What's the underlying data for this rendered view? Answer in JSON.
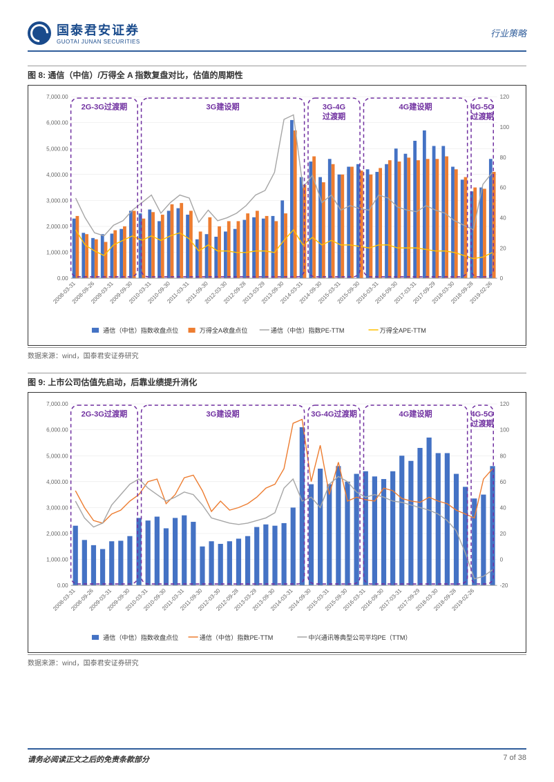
{
  "header": {
    "logo_cn": "国泰君安证券",
    "logo_en": "GUOTAI JUNAN SECURITIES",
    "doc_type": "行业策略"
  },
  "footer": {
    "disclaimer": "请务必阅读正文之后的免责条款部分",
    "page": "7 of 38"
  },
  "fig8": {
    "title": "图 8:  通信（中信）/万得全 A 指数复盘对比，估值的周期性",
    "source": "数据来源：wind，国泰君安证券研究",
    "x_labels": [
      "2008-03-31",
      "2008-09-26",
      "2009-03-31",
      "2009-09-30",
      "2010-03-31",
      "2010-09-30",
      "2011-03-31",
      "2011-09-30",
      "2012-03-30",
      "2012-09-28",
      "2013-03-29",
      "2013-09-30",
      "2014-03-31",
      "2014-09-30",
      "2015-03-31",
      "2015-09-30",
      "2016-03-31",
      "2016-09-30",
      "2017-03-31",
      "2017-09-29",
      "2018-03-30",
      "2018-09-28",
      "2019-02-26"
    ],
    "y_left": {
      "min": 0,
      "max": 7000,
      "step": 1000,
      "labels": [
        "0.00",
        "1,000.00",
        "2,000.00",
        "3,000.00",
        "4,000.00",
        "5,000.00",
        "6,000.00",
        "7,000.00"
      ]
    },
    "y_right": {
      "min": 0,
      "max": 120,
      "step": 20,
      "labels": [
        "0",
        "20",
        "40",
        "60",
        "80",
        "100",
        "120"
      ]
    },
    "periods": [
      {
        "label": "2G-3G过渡期",
        "start": 0,
        "end": 3.6
      },
      {
        "label": "3G建设期",
        "start": 3.8,
        "end": 12.6
      },
      {
        "label": "3G-4G\n过渡期",
        "start": 12.8,
        "end": 15.6
      },
      {
        "label": "4G建设期",
        "start": 15.8,
        "end": 21.4
      },
      {
        "label": "4G-5G\n过渡期",
        "start": 21.6,
        "end": 22.8
      }
    ],
    "colors": {
      "bar1": "#4472c4",
      "bar2": "#ed7d31",
      "line1": "#a6a6a6",
      "line2": "#ffc000"
    },
    "legend": [
      "通信（中信）指数收盘点位",
      "万得全A收盘点位",
      "通信（中信）指数PE-TTM",
      "万得全APE-TTM"
    ],
    "bar1": [
      2300,
      1750,
      1550,
      1700,
      1720,
      1900,
      2600,
      2500,
      2650,
      2200,
      2600,
      2700,
      2450,
      1500,
      1700,
      1600,
      1800,
      1900,
      2250,
      2350,
      2300,
      2400,
      3000,
      6100,
      3900,
      4500,
      3900,
      4600,
      4000,
      4300,
      4400,
      4200,
      4100,
      4400,
      5000,
      4800,
      5300,
      5700,
      5100,
      5100,
      4300,
      3800,
      3350,
      3500,
      4600
    ],
    "bar2": [
      2400,
      1700,
      1500,
      1400,
      1850,
      2000,
      2600,
      2300,
      2550,
      2450,
      2850,
      2900,
      2600,
      1800,
      2350,
      2000,
      2200,
      2200,
      2500,
      2600,
      2400,
      2200,
      2500,
      5700,
      3600,
      4700,
      3700,
      4400,
      4000,
      4300,
      4150,
      4000,
      4250,
      4550,
      4500,
      4650,
      4550,
      4600,
      4600,
      4700,
      4200,
      3900,
      3500,
      3450,
      4100
    ],
    "line1": [
      53,
      40,
      30,
      28,
      35,
      38,
      45,
      50,
      55,
      43,
      50,
      55,
      53,
      37,
      45,
      38,
      40,
      43,
      48,
      55,
      58,
      70,
      105,
      108,
      60,
      68,
      50,
      55,
      45,
      48,
      46,
      45,
      55,
      53,
      47,
      45,
      44,
      48,
      45,
      43,
      38,
      35,
      32,
      62,
      70
    ],
    "line2": [
      32,
      22,
      18,
      15,
      22,
      25,
      28,
      25,
      28,
      25,
      28,
      30,
      26,
      18,
      22,
      18,
      18,
      17,
      17,
      18,
      18,
      17,
      25,
      32,
      22,
      27,
      22,
      25,
      22,
      22,
      21,
      20,
      22,
      22,
      20,
      20,
      20,
      19,
      18,
      18,
      17,
      15,
      13,
      14,
      17
    ]
  },
  "fig9": {
    "title": "图 9:  上市公司估值先启动，后靠业绩提升消化",
    "source": "数据来源：wind，国泰君安证券研究",
    "x_labels": [
      "2008-03-31",
      "2008-09-26",
      "2009-03-31",
      "2009-09-30",
      "2010-03-31",
      "2010-09-30",
      "2011-03-31",
      "2011-09-30",
      "2012-03-30",
      "2012-09-28",
      "2013-03-29",
      "2013-09-30",
      "2014-03-31",
      "2014-09-30",
      "2015-03-31",
      "2015-09-30",
      "2016-03-31",
      "2016-09-30",
      "2017-03-31",
      "2017-09-29",
      "2018-03-30",
      "2018-09-28",
      "2019-02-26"
    ],
    "y_left": {
      "min": 0,
      "max": 7000,
      "step": 1000,
      "labels": [
        "0.00",
        "1,000.00",
        "2,000.00",
        "3,000.00",
        "4,000.00",
        "5,000.00",
        "6,000.00",
        "7,000.00"
      ]
    },
    "y_right": {
      "min": -20,
      "max": 120,
      "step": 20,
      "labels": [
        "-20",
        "0",
        "20",
        "40",
        "60",
        "80",
        "100",
        "120"
      ]
    },
    "periods": [
      {
        "label": "2G-3G过渡期",
        "start": 0,
        "end": 3.6
      },
      {
        "label": "3G建设期",
        "start": 3.8,
        "end": 12.6
      },
      {
        "label": "3G-4G过渡期",
        "start": 12.8,
        "end": 15.6
      },
      {
        "label": "4G建设期",
        "start": 15.8,
        "end": 21.4
      },
      {
        "label": "4G-5G\n过渡期",
        "start": 21.6,
        "end": 22.8
      }
    ],
    "colors": {
      "bar1": "#4472c4",
      "line1": "#ed7d31",
      "line2": "#a6a6a6"
    },
    "legend": [
      "通信（中信）指数收盘点位",
      "通信（中信）指数PE-TTM",
      "中兴通讯等典型公司平均PE（TTM）"
    ],
    "bar1": [
      2300,
      1750,
      1550,
      1400,
      1700,
      1720,
      1900,
      2600,
      2500,
      2650,
      2200,
      2600,
      2700,
      2450,
      1500,
      1700,
      1600,
      1700,
      1800,
      1900,
      2250,
      2350,
      2300,
      2400,
      3000,
      6100,
      3900,
      4500,
      3900,
      4600,
      4000,
      4300,
      4400,
      4200,
      4100,
      4400,
      5000,
      4800,
      5300,
      5700,
      5100,
      5100,
      4300,
      3800,
      3350,
      3500,
      4600
    ],
    "line1": [
      53,
      40,
      30,
      28,
      35,
      38,
      45,
      50,
      60,
      62,
      43,
      50,
      63,
      65,
      53,
      37,
      45,
      38,
      40,
      43,
      48,
      55,
      58,
      70,
      105,
      108,
      60,
      88,
      50,
      75,
      45,
      48,
      46,
      45,
      55,
      53,
      47,
      45,
      44,
      48,
      45,
      43,
      38,
      35,
      32,
      62,
      70
    ],
    "line2": [
      45,
      32,
      25,
      28,
      42,
      50,
      58,
      62,
      55,
      50,
      45,
      48,
      52,
      50,
      42,
      32,
      30,
      28,
      27,
      28,
      30,
      32,
      36,
      55,
      62,
      45,
      48,
      40,
      58,
      64,
      60,
      52,
      48,
      50,
      48,
      45,
      44,
      42,
      40,
      38,
      35,
      30,
      22,
      5,
      -15,
      -13,
      -8
    ]
  }
}
